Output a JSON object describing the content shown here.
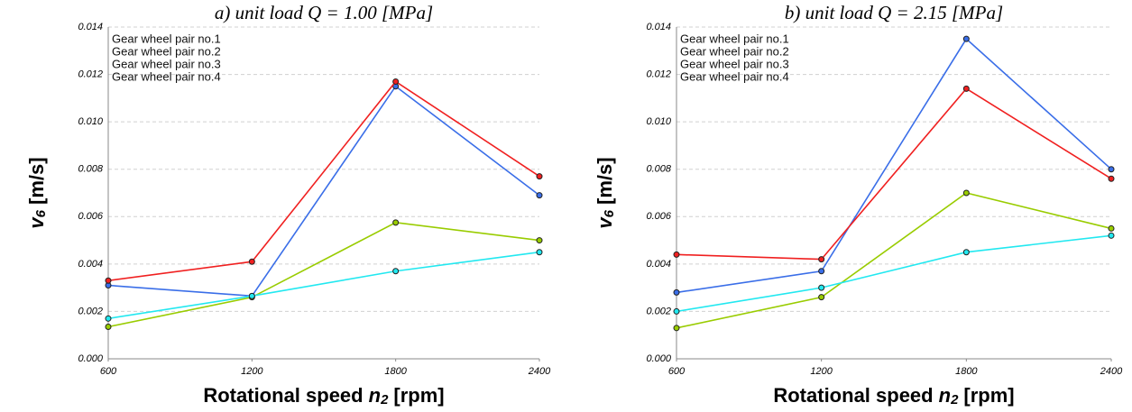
{
  "chart_data": [
    {
      "type": "line",
      "title": "a) unit load Q = 1.00 [MPa]",
      "x_label": {
        "text": "Rotational speed",
        "symbol": "n",
        "subscript": "2",
        "unit": "[rpm]"
      },
      "y_label": {
        "symbol": "v",
        "subscript": "6",
        "unit": "[m/s]"
      },
      "x": [
        600,
        1200,
        1800,
        2400
      ],
      "xlim": [
        600,
        2400
      ],
      "xticks": [
        600,
        1200,
        1800,
        2400
      ],
      "ylim": [
        0,
        0.014
      ],
      "yticks": [
        {
          "value": 0,
          "label": "0.000"
        },
        {
          "value": 0.002,
          "label": "0.002"
        },
        {
          "value": 0.004,
          "label": "0.004"
        },
        {
          "value": 0.006,
          "label": "0.006"
        },
        {
          "value": 0.008,
          "label": "0.008"
        },
        {
          "value": 0.01,
          "label": "0.010"
        },
        {
          "value": 0.012,
          "label": "0.012"
        },
        {
          "value": 0.014,
          "label": "0.014"
        }
      ],
      "grid": true,
      "legend": "upper left",
      "series": [
        {
          "name": "Gear wheel pair no.1",
          "color": "#3a6ee8",
          "values": [
            0.0031,
            0.00265,
            0.0115,
            0.0069
          ]
        },
        {
          "name": "Gear wheel pair no.2",
          "color": "#f02020",
          "values": [
            0.0033,
            0.0041,
            0.0117,
            0.0077
          ]
        },
        {
          "name": "Gear wheel pair no.3",
          "color": "#99cc00",
          "values": [
            0.00135,
            0.0026,
            0.00575,
            0.005
          ]
        },
        {
          "name": "Gear wheel pair no.4",
          "color": "#22e8f0",
          "values": [
            0.0017,
            0.00265,
            0.0037,
            0.0045
          ]
        }
      ]
    },
    {
      "type": "line",
      "title": "b) unit load Q = 2.15 [MPa]",
      "x_label": {
        "text": "Rotational speed",
        "symbol": "n",
        "subscript": "2",
        "unit": "[rpm]"
      },
      "y_label": {
        "symbol": "v",
        "subscript": "6",
        "unit": "[m/s]"
      },
      "x": [
        600,
        1200,
        1800,
        2400
      ],
      "xlim": [
        600,
        2400
      ],
      "xticks": [
        600,
        1200,
        1800,
        2400
      ],
      "ylim": [
        0,
        0.014
      ],
      "yticks": [
        {
          "value": 0,
          "label": "0.000"
        },
        {
          "value": 0.002,
          "label": "0.002"
        },
        {
          "value": 0.004,
          "label": "0.004"
        },
        {
          "value": 0.006,
          "label": "0.006"
        },
        {
          "value": 0.008,
          "label": "0.008"
        },
        {
          "value": 0.01,
          "label": "0.010"
        },
        {
          "value": 0.012,
          "label": "0.012"
        },
        {
          "value": 0.014,
          "label": "0.014"
        }
      ],
      "grid": true,
      "legend": "upper left",
      "series": [
        {
          "name": "Gear wheel pair no.1",
          "color": "#3a6ee8",
          "values": [
            0.0028,
            0.0037,
            0.0135,
            0.008
          ]
        },
        {
          "name": "Gear wheel pair no.2",
          "color": "#f02020",
          "values": [
            0.0044,
            0.0042,
            0.0114,
            0.0076
          ]
        },
        {
          "name": "Gear wheel pair no.3",
          "color": "#99cc00",
          "values": [
            0.0013,
            0.0026,
            0.007,
            0.0055
          ]
        },
        {
          "name": "Gear wheel pair no.4",
          "color": "#22e8f0",
          "values": [
            0.002,
            0.003,
            0.0045,
            0.0052
          ]
        }
      ]
    }
  ]
}
